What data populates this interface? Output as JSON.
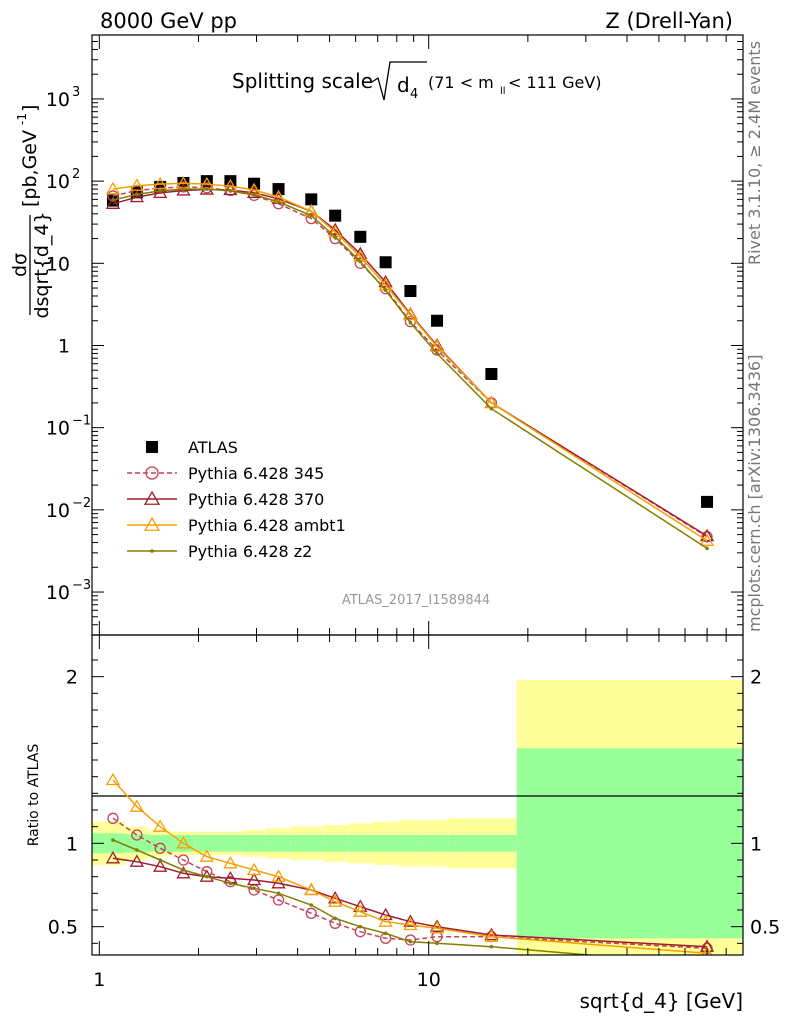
{
  "header": {
    "left": "8000 GeV pp",
    "right": "Z (Drell-Yan)"
  },
  "side": {
    "rivet": "Rivet 3.1.10, ≥ 2.4M events",
    "mcplots": "mcplots.cern.ch [arXiv:1306.3436]"
  },
  "chart_data": [
    {
      "type": "scatter",
      "title": "Splitting scale",
      "title_symbol": "d",
      "title_symbol_sub": "4",
      "title_range_pre": "(71 < m",
      "title_range_sub": "ll",
      "title_range_post": " < 111 GeV)",
      "ylabel_top": "dσ",
      "ylabel_bottom": "dsqrt{d_4}",
      "ylabel_unit": "[pb,GeV",
      "ylabel_unit_sup": "-1",
      "ylabel_unit_end": "]",
      "xlabel": "sqrt{d_4} [GeV]",
      "xscale": "log",
      "yscale": "log",
      "xlim": [
        0.95,
        90
      ],
      "ylim": [
        0.0003,
        6000
      ],
      "y_ticks": [
        {
          "v": 1000,
          "base": "10",
          "exp": "3"
        },
        {
          "v": 100,
          "base": "10",
          "exp": "2"
        },
        {
          "v": 10,
          "base": "10",
          "exp": ""
        },
        {
          "v": 1,
          "base": "1",
          "exp": ""
        },
        {
          "v": 0.1,
          "base": "10",
          "exp": "−1"
        },
        {
          "v": 0.01,
          "base": "10",
          "exp": "−2"
        },
        {
          "v": 0.001,
          "base": "10",
          "exp": "−3"
        }
      ],
      "watermark": "ATLAS_2017_I1589844",
      "legend_position": "lower-left",
      "series": [
        {
          "name": "ATLAS",
          "color": "#000000",
          "style": "data",
          "x": [
            1.1,
            1.3,
            1.53,
            1.8,
            2.12,
            2.5,
            2.95,
            3.5,
            4.4,
            5.2,
            6.2,
            7.4,
            8.8,
            10.6,
            15.5,
            70
          ],
          "y": [
            58,
            73,
            85,
            95,
            100,
            100,
            93,
            80,
            60,
            38,
            21,
            10.3,
            4.6,
            2.0,
            0.45,
            0.0125
          ]
        },
        {
          "name": "Pythia 6.428 345",
          "color": "#c2445a",
          "style": "circle-dashed",
          "x": [
            1.1,
            1.3,
            1.53,
            1.8,
            2.12,
            2.5,
            2.95,
            3.5,
            4.4,
            5.2,
            6.2,
            7.4,
            8.8,
            10.6,
            15.5,
            70
          ],
          "y": [
            66,
            77,
            82,
            85,
            83,
            77,
            67,
            53,
            35,
            20,
            10,
            4.9,
            1.95,
            0.88,
            0.2,
            0.0047
          ]
        },
        {
          "name": "Pythia 6.428 370",
          "color": "#a01c2e",
          "style": "triangle",
          "x": [
            1.1,
            1.3,
            1.53,
            1.8,
            2.12,
            2.5,
            2.95,
            3.5,
            4.4,
            5.2,
            6.2,
            7.4,
            8.8,
            10.6,
            15.5,
            70
          ],
          "y": [
            53,
            64,
            72,
            77,
            79,
            78,
            72,
            61,
            43,
            25.5,
            13,
            5.9,
            2.4,
            1.0,
            0.2,
            0.0048
          ]
        },
        {
          "name": "Pythia 6.428 ambt1",
          "color": "#f5a000",
          "style": "triangle",
          "x": [
            1.1,
            1.3,
            1.53,
            1.8,
            2.12,
            2.5,
            2.95,
            3.5,
            4.4,
            5.2,
            6.2,
            7.4,
            8.8,
            10.6,
            15.5,
            70
          ],
          "y": [
            80,
            88,
            92,
            94,
            92,
            87,
            78,
            64,
            43,
            24,
            12,
            5.4,
            2.35,
            0.97,
            0.2,
            0.0042
          ]
        },
        {
          "name": "Pythia 6.428 z2",
          "color": "#808000",
          "style": "dot",
          "x": [
            1.1,
            1.3,
            1.53,
            1.8,
            2.12,
            2.5,
            2.95,
            3.5,
            4.4,
            5.2,
            6.2,
            7.4,
            8.8,
            10.6,
            15.5,
            70
          ],
          "y": [
            59,
            69,
            76,
            80,
            80,
            76,
            68,
            56,
            38,
            21,
            10.5,
            4.7,
            1.9,
            0.8,
            0.17,
            0.0034
          ]
        }
      ]
    },
    {
      "type": "line",
      "ylabel": "Ratio to ATLAS",
      "xscale": "log",
      "xlim": [
        0.95,
        90
      ],
      "ylim": [
        0.33,
        2.25
      ],
      "y_ticks": [
        0.5,
        1,
        2
      ],
      "y_tick_labels": [
        "0.5",
        "1",
        "2"
      ],
      "x_ticks": [
        1,
        10
      ],
      "x_tick_labels": [
        "1",
        "10"
      ],
      "uncertainty_bins": [
        {
          "lo": 0.95,
          "hi": 1.2,
          "inner": 0.06,
          "outer": 0.13
        },
        {
          "lo": 1.2,
          "hi": 1.4,
          "inner": 0.055,
          "outer": 0.1
        },
        {
          "lo": 1.4,
          "hi": 1.65,
          "inner": 0.05,
          "outer": 0.08
        },
        {
          "lo": 1.65,
          "hi": 1.95,
          "inner": 0.05,
          "outer": 0.07
        },
        {
          "lo": 1.95,
          "hi": 2.3,
          "inner": 0.05,
          "outer": 0.07
        },
        {
          "lo": 2.3,
          "hi": 2.7,
          "inner": 0.05,
          "outer": 0.07
        },
        {
          "lo": 2.7,
          "hi": 3.2,
          "inner": 0.05,
          "outer": 0.08
        },
        {
          "lo": 3.2,
          "hi": 3.8,
          "inner": 0.05,
          "outer": 0.09
        },
        {
          "lo": 3.8,
          "hi": 4.8,
          "inner": 0.05,
          "outer": 0.1
        },
        {
          "lo": 4.8,
          "hi": 5.7,
          "inner": 0.05,
          "outer": 0.11
        },
        {
          "lo": 5.7,
          "hi": 6.8,
          "inner": 0.05,
          "outer": 0.12
        },
        {
          "lo": 6.8,
          "hi": 8.1,
          "inner": 0.05,
          "outer": 0.13
        },
        {
          "lo": 8.1,
          "hi": 9.6,
          "inner": 0.05,
          "outer": 0.14
        },
        {
          "lo": 9.6,
          "hi": 11.5,
          "inner": 0.05,
          "outer": 0.14
        },
        {
          "lo": 11.5,
          "hi": 18.5,
          "inner": 0.05,
          "outer": 0.15
        },
        {
          "lo": 18.5,
          "hi": 90,
          "inner": 0.57,
          "outer": 0.98
        }
      ],
      "series": [
        {
          "name": "Pythia 6.428 345",
          "color": "#c2445a",
          "style": "circle-dashed",
          "x": [
            1.1,
            1.3,
            1.53,
            1.8,
            2.12,
            2.5,
            2.95,
            3.5,
            4.4,
            5.2,
            6.2,
            7.4,
            8.8,
            10.6,
            15.5,
            70
          ],
          "y": [
            1.15,
            1.05,
            0.97,
            0.9,
            0.83,
            0.77,
            0.72,
            0.66,
            0.58,
            0.52,
            0.47,
            0.43,
            0.42,
            0.44,
            0.44,
            0.37
          ]
        },
        {
          "name": "Pythia 6.428 370",
          "color": "#a01c2e",
          "style": "triangle",
          "x": [
            1.1,
            1.3,
            1.53,
            1.8,
            2.12,
            2.5,
            2.95,
            3.5,
            4.4,
            5.2,
            6.2,
            7.4,
            8.8,
            10.6,
            15.5,
            70
          ],
          "y": [
            0.91,
            0.89,
            0.86,
            0.82,
            0.8,
            0.79,
            0.78,
            0.76,
            0.72,
            0.67,
            0.62,
            0.57,
            0.53,
            0.5,
            0.45,
            0.38
          ]
        },
        {
          "name": "Pythia 6.428 ambt1",
          "color": "#f5a000",
          "style": "triangle",
          "x": [
            1.1,
            1.3,
            1.53,
            1.8,
            2.12,
            2.5,
            2.95,
            3.5,
            4.4,
            5.2,
            6.2,
            7.4,
            8.8,
            10.6,
            15.5,
            70
          ],
          "y": [
            1.38,
            1.22,
            1.1,
            1.0,
            0.92,
            0.88,
            0.84,
            0.8,
            0.72,
            0.65,
            0.59,
            0.53,
            0.51,
            0.49,
            0.44,
            0.34
          ]
        },
        {
          "name": "Pythia 6.428 z2",
          "color": "#808000",
          "style": "dot",
          "x": [
            1.1,
            1.3,
            1.53,
            1.8,
            2.12,
            2.5,
            2.95,
            3.5,
            4.4,
            5.2,
            6.2,
            7.4,
            8.8,
            10.6,
            15.5,
            70
          ],
          "y": [
            1.02,
            0.96,
            0.9,
            0.84,
            0.8,
            0.76,
            0.73,
            0.7,
            0.63,
            0.55,
            0.5,
            0.46,
            0.41,
            0.4,
            0.38,
            0.27
          ]
        }
      ]
    }
  ]
}
